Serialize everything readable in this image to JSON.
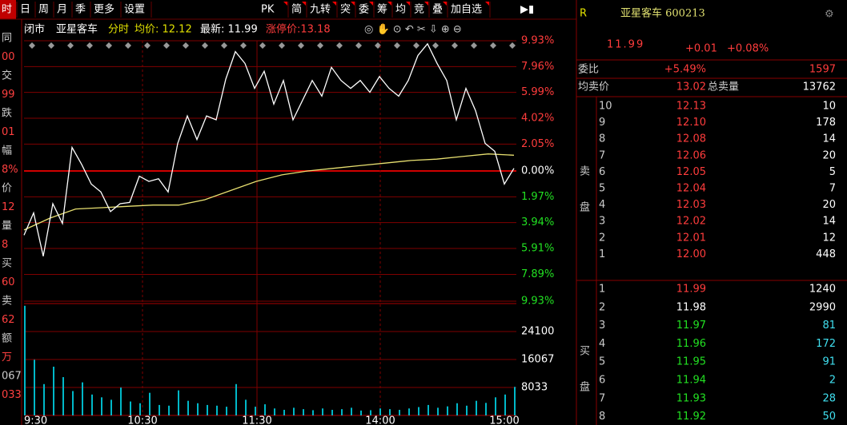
{
  "toolbar": {
    "left": [
      "时",
      "日",
      "周",
      "月",
      "季",
      "更多",
      "设置"
    ],
    "right": [
      "PK",
      "简",
      "九转",
      "突",
      "委",
      "筹",
      "均",
      "竞",
      "叠",
      "加自选"
    ]
  },
  "side_strip": [
    "同",
    "00",
    "交",
    "99",
    "跌",
    "01",
    "幅",
    "8%",
    "价",
    "12",
    "量",
    "8",
    "买",
    "60",
    "卖",
    "62",
    "额",
    "万",
    "067",
    "033"
  ],
  "info_bar": {
    "status": "闭市",
    "name": "亚星客车",
    "mode": "分时",
    "avg": "均价: 12.12",
    "last": "最新: 11.99",
    "limit": "涨停价:13.18"
  },
  "chart": {
    "type": "line",
    "price_ticks": [
      {
        "value": 9.93,
        "label": "9.93%"
      },
      {
        "value": 7.96,
        "label": "7.96%"
      },
      {
        "value": 5.99,
        "label": "5.99%"
      },
      {
        "value": 4.02,
        "label": "4.02%"
      },
      {
        "value": 2.05,
        "label": "2.05%"
      },
      {
        "value": 0,
        "label": "0.00%"
      },
      {
        "value": -1.97,
        "label": "1.97%"
      },
      {
        "value": -3.94,
        "label": "3.94%"
      },
      {
        "value": -5.91,
        "label": "5.91%"
      },
      {
        "value": -7.89,
        "label": "7.89%"
      },
      {
        "value": -9.93,
        "label": "9.93%"
      }
    ],
    "ylim": [
      -9.93,
      9.93
    ],
    "volume_ticks": [
      24100,
      16067,
      8033
    ],
    "volume_lim": [
      0,
      32133
    ],
    "x_labels": [
      "9:30",
      "10:30",
      "11:30",
      "14:00",
      "15:00"
    ],
    "price": {
      "color": "#ffffff",
      "values": [
        -4.9,
        -3.2,
        -6.5,
        -2.5,
        -4,
        1.8,
        0.5,
        -1,
        -1.6,
        -3.1,
        -2.5,
        -2.4,
        -0.4,
        -0.8,
        -0.6,
        -1.6,
        2.1,
        4.2,
        2.4,
        4.2,
        3.9,
        7,
        9.1,
        8.2,
        6.3,
        7.6,
        5.1,
        6.9,
        3.9,
        5.4,
        6.9,
        5.7,
        7.9,
        6.9,
        6.3,
        6.9,
        6,
        7.2,
        6.3,
        5.7,
        6.9,
        8.8,
        9.7,
        8.2,
        6.9,
        3.9,
        6.3,
        4.6,
        2.1,
        1.5,
        -1,
        0.2
      ]
    },
    "avg": {
      "color": "#e8e070",
      "values": [
        -4.5,
        -3.6,
        -2.9,
        -2.8,
        -2.7,
        -2.6,
        -2.6,
        -2.2,
        -1.5,
        -0.8,
        -0.3,
        0,
        0.2,
        0.4,
        0.6,
        0.8,
        0.9,
        1.1,
        1.3,
        1.2
      ]
    },
    "volume": {
      "color": "#00b8c8",
      "values": [
        31500,
        16000,
        9000,
        14000,
        11000,
        7000,
        9500,
        6000,
        5200,
        4500,
        8000,
        4000,
        3500,
        6500,
        3000,
        2800,
        7200,
        4200,
        3500,
        3000,
        2800,
        2500,
        9000,
        4500,
        2500,
        3200,
        2000,
        1600,
        2200,
        1800,
        1500,
        2000,
        1600,
        1800,
        2200,
        1400,
        1500,
        2000,
        1800,
        1600,
        2000,
        2400,
        3000,
        2200,
        2600,
        3500,
        2800,
        4200,
        3600,
        5200,
        6000,
        8200
      ]
    }
  },
  "quote": {
    "code_badge": "R",
    "title": "亚星客车 600213",
    "price": "11.99",
    "change": "+0.01",
    "pct": "+0.08%",
    "ratio_label": "委比",
    "ratio": "+5.49%",
    "ratio_vol": "1597",
    "avg_ask_label": "均卖价",
    "avg_ask": "13.02",
    "total_ask_label": "总卖量",
    "total_ask": "13762",
    "sell_label": [
      "卖",
      "盘"
    ],
    "buy_label": [
      "买",
      "盘"
    ],
    "sell": [
      [
        "10",
        "12.13",
        "10"
      ],
      [
        "9",
        "12.10",
        "178"
      ],
      [
        "8",
        "12.08",
        "14"
      ],
      [
        "7",
        "12.06",
        "20"
      ],
      [
        "6",
        "12.05",
        "5"
      ],
      [
        "5",
        "12.04",
        "7"
      ],
      [
        "4",
        "12.03",
        "20"
      ],
      [
        "3",
        "12.02",
        "14"
      ],
      [
        "2",
        "12.01",
        "12"
      ],
      [
        "1",
        "12.00",
        "448"
      ]
    ],
    "buy": [
      [
        "1",
        "11.99",
        "1240"
      ],
      [
        "2",
        "11.98",
        "2990"
      ],
      [
        "3",
        "11.97",
        "81"
      ],
      [
        "4",
        "11.96",
        "172"
      ],
      [
        "5",
        "11.95",
        "91"
      ],
      [
        "6",
        "11.94",
        "2"
      ],
      [
        "7",
        "11.93",
        "28"
      ],
      [
        "8",
        "11.92",
        "50"
      ]
    ],
    "sell_color": "#ff3c3c",
    "buy_colors": [
      "#ff3c3c",
      "#ffffff",
      "#22e022",
      "#22e022",
      "#22e022",
      "#22e022",
      "#22e022",
      "#22e022"
    ]
  }
}
